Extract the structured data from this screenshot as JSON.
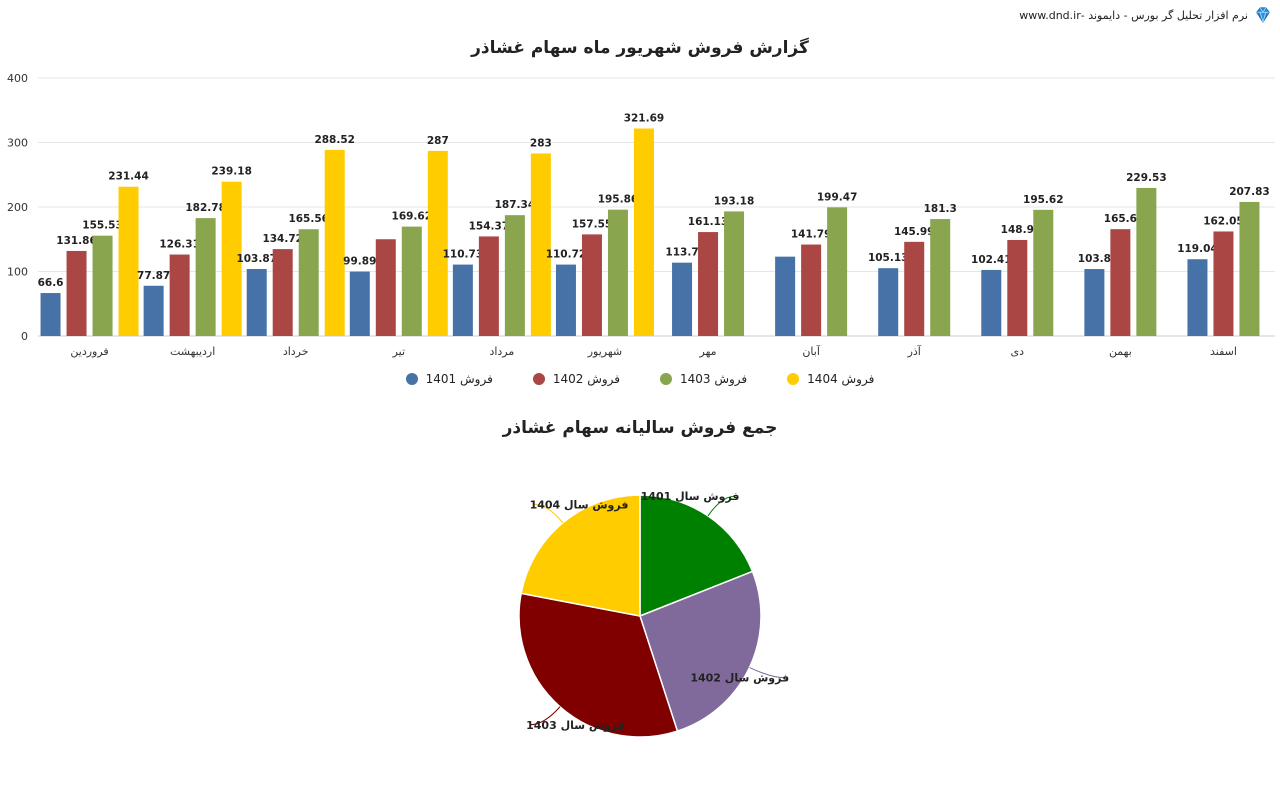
{
  "header": {
    "brand_text": "نرم افزار تحلیل گر بورس - دایموند -www.dnd.ir",
    "logo_icon": "diamond-icon"
  },
  "chart_data": [
    {
      "type": "bar",
      "title": "گزارش فروش شهریور ماه سهام غشاذر",
      "categories": [
        "فروردین",
        "اردیبهشت",
        "خرداد",
        "تیر",
        "مرداد",
        "شهریور",
        "مهر",
        "آبان",
        "آذر",
        "دی",
        "بهمن",
        "اسفند"
      ],
      "ylim": [
        0,
        400
      ],
      "yticks": [
        0,
        100,
        200,
        300,
        400
      ],
      "grid": true,
      "legend_position": "bottom",
      "series": [
        {
          "name": "فروش 1401",
          "color": "#4672a8",
          "values": [
            66.6,
            77.87,
            103.87,
            99.89,
            110.73,
            110.72,
            113.7,
            123,
            105.13,
            102.41,
            103.8,
            119.04
          ],
          "labeled": [
            true,
            true,
            true,
            true,
            true,
            true,
            true,
            false,
            true,
            true,
            true,
            true
          ]
        },
        {
          "name": "فروش 1402",
          "color": "#aa4643",
          "values": [
            131.86,
            126.31,
            134.72,
            150,
            154.37,
            157.55,
            161.13,
            141.79,
            145.99,
            148.9,
            165.6,
            162.05
          ],
          "labeled": [
            true,
            true,
            true,
            false,
            true,
            true,
            true,
            true,
            true,
            true,
            true,
            true
          ]
        },
        {
          "name": "فروش 1403",
          "color": "#89a54e",
          "values": [
            155.53,
            182.78,
            165.56,
            169.62,
            187.34,
            195.86,
            193.18,
            199.47,
            181.3,
            195.62,
            229.53,
            207.83
          ],
          "labeled": [
            true,
            true,
            true,
            true,
            true,
            true,
            true,
            true,
            true,
            true,
            true,
            true
          ]
        },
        {
          "name": "فروش 1404",
          "color": "#ffcc00",
          "values": [
            231.44,
            239.18,
            288.52,
            287,
            283,
            321.69,
            null,
            null,
            null,
            null,
            null,
            null
          ],
          "labeled": [
            true,
            true,
            true,
            true,
            true,
            true,
            false,
            false,
            false,
            false,
            false,
            false
          ]
        }
      ]
    },
    {
      "type": "pie",
      "title": "جمع فروش سالیانه سهام غشاذر",
      "slices": [
        {
          "label": "فروش سال 1401",
          "value": 19,
          "color": "#008000"
        },
        {
          "label": "فروش سال 1402",
          "value": 26,
          "color": "#80699b"
        },
        {
          "label": "فروش سال 1403",
          "value": 33,
          "color": "#800000"
        },
        {
          "label": "فروش سال 1404",
          "value": 22,
          "color": "#ffcc00"
        }
      ]
    }
  ]
}
